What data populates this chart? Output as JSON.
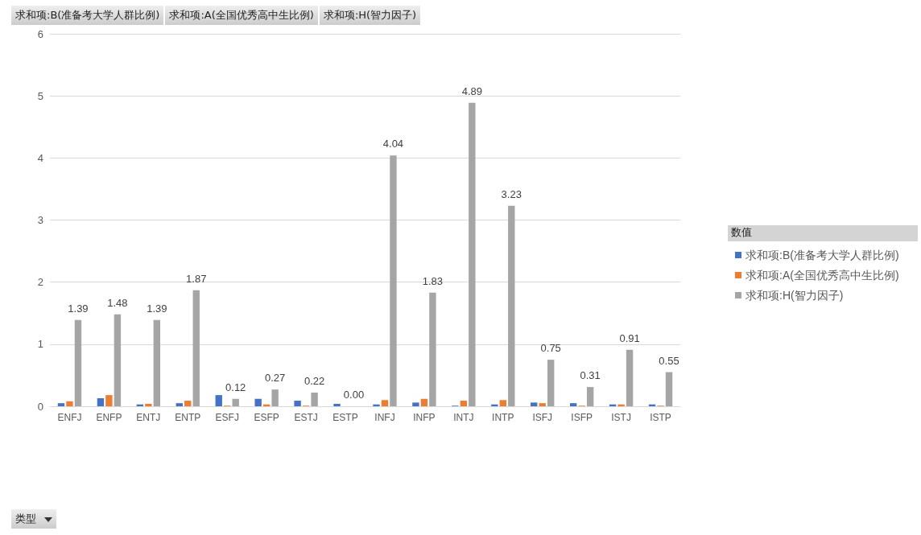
{
  "chart_data": {
    "type": "bar",
    "annotations": [
      "求和项:B(准备考大学人群比例)",
      "求和项:A(全国优秀高中生比例)",
      "求和项:H(智力因子)",
      "类型"
    ],
    "legend_title": "数值",
    "categories": [
      "ENFJ",
      "ENFP",
      "ENTJ",
      "ENTP",
      "ESFJ",
      "ESFP",
      "ESTJ",
      "ESTP",
      "INFJ",
      "INFP",
      "INTJ",
      "INTP",
      "ISFJ",
      "ISFP",
      "ISTJ",
      "ISTP"
    ],
    "series": [
      {
        "name": "求和项:B(准备考大学人群比例)",
        "color": "#4472c4",
        "values": [
          0.05,
          0.13,
          0.03,
          0.05,
          0.18,
          0.12,
          0.09,
          0.04,
          0.03,
          0.06,
          0.01,
          0.03,
          0.06,
          0.05,
          0.03,
          0.03
        ]
      },
      {
        "name": "求和项:A(全国优秀高中生比例)",
        "color": "#ed7d31",
        "values": [
          0.08,
          0.18,
          0.04,
          0.09,
          0.01,
          0.03,
          0.01,
          0,
          0.1,
          0.12,
          0.09,
          0.1,
          0.05,
          0.01,
          0.03,
          0.01
        ]
      },
      {
        "name": "求和项:H(智力因子)",
        "color": "#a5a5a5",
        "values": [
          1.39,
          1.48,
          1.39,
          1.87,
          0.12,
          0.27,
          0.22,
          0.0,
          4.04,
          1.83,
          4.89,
          3.23,
          0.75,
          0.31,
          0.91,
          0.55
        ],
        "value_labels": [
          "1.39",
          "1.48",
          "1.39",
          "1.87",
          "0.12",
          "0.27",
          "0.22",
          "0.00",
          "4.04",
          "1.83",
          "4.89",
          "3.23",
          "0.75",
          "0.31",
          "0.91",
          "0.55"
        ]
      }
    ],
    "ylim": [
      0,
      6
    ],
    "yticks": [
      0,
      1,
      2,
      3,
      4,
      5,
      6
    ],
    "grid": "y",
    "legend": "right"
  }
}
